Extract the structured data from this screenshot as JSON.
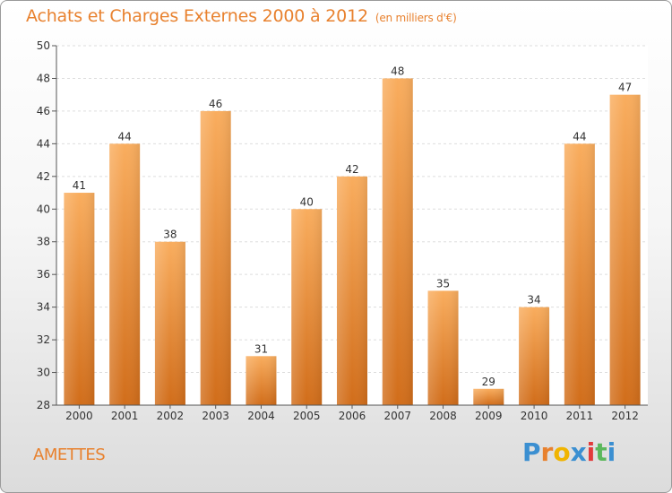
{
  "header": {
    "title": "Achats et Charges Externes 2000 à 2012",
    "subtitle": "(en milliers d'€)"
  },
  "footer": {
    "commune": "AMETTES",
    "logo_text": "Proxiti"
  },
  "colors": {
    "title": "#e8812e",
    "bar_top": "#f7a552",
    "bar_bottom": "#d4711c",
    "logo": [
      "#3b8fd1",
      "#e8812e",
      "#f0b400",
      "#3b8fd1",
      "#e23b3b",
      "#5cb85c",
      "#3b8fd1"
    ]
  },
  "chart_data": {
    "type": "bar",
    "title": "Achats et Charges Externes 2000 à 2012",
    "subtitle": "(en milliers d'€)",
    "categories": [
      "2000",
      "2001",
      "2002",
      "2003",
      "2004",
      "2005",
      "2006",
      "2007",
      "2008",
      "2009",
      "2010",
      "2011",
      "2012"
    ],
    "values": [
      41,
      44,
      38,
      46,
      31,
      40,
      42,
      48,
      35,
      29,
      34,
      44,
      47
    ],
    "ylim": [
      28,
      50
    ],
    "yticks": [
      28,
      30,
      32,
      34,
      36,
      38,
      40,
      42,
      44,
      46,
      48,
      50
    ],
    "grid": true,
    "xlabel": "",
    "ylabel": ""
  }
}
